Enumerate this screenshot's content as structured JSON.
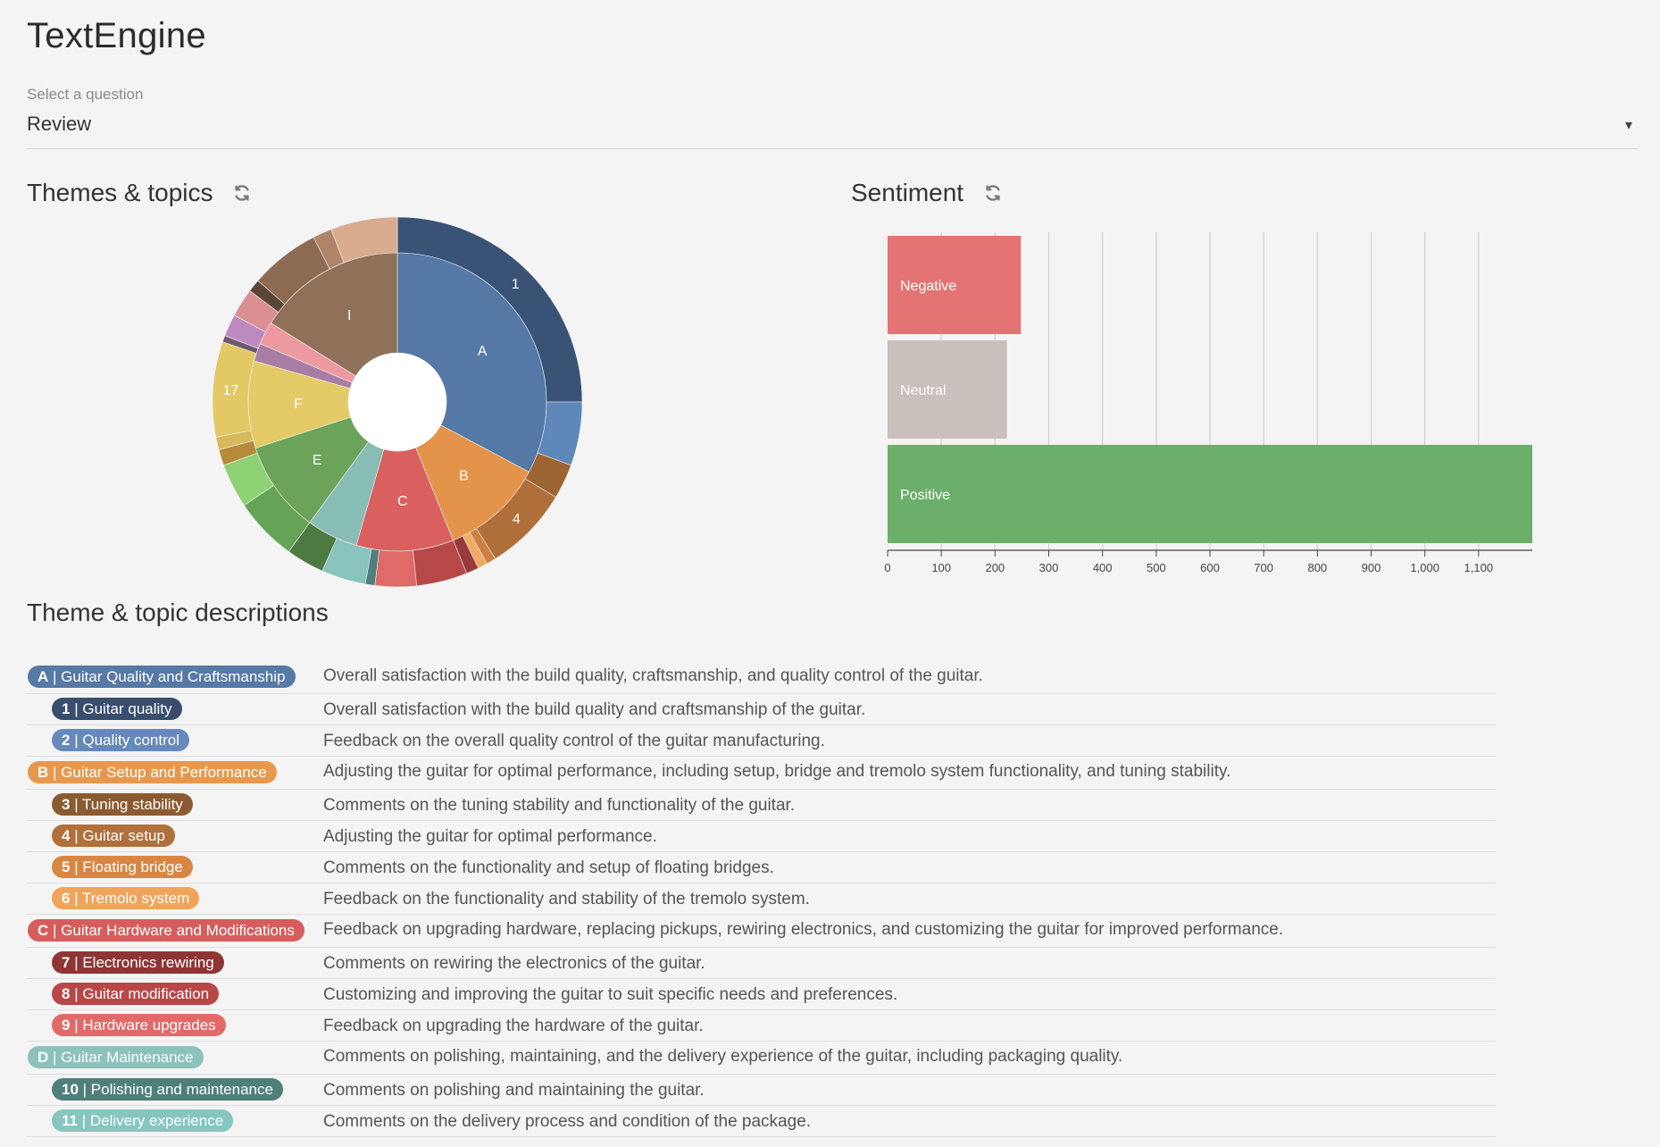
{
  "app": {
    "title": "TextEngine"
  },
  "question": {
    "label": "Select a question",
    "value": "Review",
    "caret": "▾"
  },
  "themes_topics": {
    "title": "Themes & topics",
    "refresh_icon": "refresh-icon"
  },
  "sentiment": {
    "title": "Sentiment",
    "refresh_icon": "refresh-icon"
  },
  "descriptions": {
    "title": "Theme & topic descriptions"
  },
  "chart_data": [
    {
      "type": "sunburst",
      "inner_labels": [
        "A",
        "B",
        "C",
        "E",
        "F",
        "I"
      ],
      "outer_labels": [
        "1",
        "4",
        "17"
      ],
      "inner": [
        {
          "label": "A",
          "color": "#5479a6",
          "start": 0,
          "end": 118
        },
        {
          "label": "B",
          "color": "#e4934a",
          "start": 118,
          "end": 158
        },
        {
          "label": "C",
          "color": "#d9605e",
          "start": 158,
          "end": 196
        },
        {
          "label": "",
          "color": "#88bdb6",
          "start": 196,
          "end": 216
        },
        {
          "label": "E",
          "color": "#6ba35b",
          "start": 216,
          "end": 252
        },
        {
          "label": "F",
          "color": "#e5ca68",
          "start": 252,
          "end": 286
        },
        {
          "label": "",
          "color": "#a87da5",
          "start": 286,
          "end": 293
        },
        {
          "label": "",
          "color": "#ec99a0",
          "start": 293,
          "end": 302
        },
        {
          "label": "I",
          "color": "#8f7058",
          "start": 302,
          "end": 360
        }
      ],
      "outer": [
        {
          "label": "1",
          "color": "#3a5275",
          "start": 0,
          "end": 90
        },
        {
          "label": "",
          "color": "#5e87ba",
          "start": 90,
          "end": 110
        },
        {
          "label": "",
          "color": "#9c6432",
          "start": 110,
          "end": 121
        },
        {
          "label": "4",
          "color": "#b06e39",
          "start": 121,
          "end": 148
        },
        {
          "label": "",
          "color": "#cd7f3f",
          "start": 148,
          "end": 151
        },
        {
          "label": "",
          "color": "#f0aa62",
          "start": 151,
          "end": 154
        },
        {
          "label": "",
          "color": "#993a3a",
          "start": 154,
          "end": 158
        },
        {
          "label": "",
          "color": "#b84747",
          "start": 158,
          "end": 174
        },
        {
          "label": "",
          "color": "#e06a68",
          "start": 174,
          "end": 187
        },
        {
          "label": "",
          "color": "#4e7f7b",
          "start": 187,
          "end": 190
        },
        {
          "label": "",
          "color": "#88c3bd",
          "start": 190,
          "end": 204
        },
        {
          "label": "",
          "color": "#4d7a40",
          "start": 204,
          "end": 216
        },
        {
          "label": "",
          "color": "#65a456",
          "start": 216,
          "end": 236
        },
        {
          "label": "",
          "color": "#8fd276",
          "start": 236,
          "end": 250
        },
        {
          "label": "",
          "color": "#b58a3a",
          "start": 250,
          "end": 255
        },
        {
          "label": "",
          "color": "#d7ba5c",
          "start": 255,
          "end": 259
        },
        {
          "label": "17",
          "color": "#e2c966",
          "start": 259,
          "end": 289
        },
        {
          "label": "",
          "color": "#6e5970",
          "start": 289,
          "end": 291
        },
        {
          "label": "",
          "color": "#bd8ac0",
          "start": 291,
          "end": 298
        },
        {
          "label": "",
          "color": "#dc8f92",
          "start": 298,
          "end": 307
        },
        {
          "label": "",
          "color": "#5b4636",
          "start": 307,
          "end": 311
        },
        {
          "label": "",
          "color": "#8d6b52",
          "start": 311,
          "end": 333
        },
        {
          "label": "",
          "color": "#b08468",
          "start": 333,
          "end": 339
        },
        {
          "label": "",
          "color": "#d9ab8f",
          "start": 339,
          "end": 360
        }
      ]
    },
    {
      "type": "bar",
      "orientation": "horizontal",
      "categories": [
        "Negative",
        "Neutral",
        "Positive"
      ],
      "values": [
        248,
        222,
        1200
      ],
      "colors": [
        "#e37473",
        "#c9bfbb",
        "#6baf6a"
      ],
      "xlim": [
        0,
        1200
      ],
      "xticks": [
        "0",
        "100",
        "200",
        "300",
        "400",
        "500",
        "600",
        "700",
        "800",
        "900",
        "1,000",
        "1,100"
      ],
      "grid": true
    }
  ],
  "rows": [
    {
      "type": "theme",
      "code": "A",
      "name": "Guitar Quality and Craftsmanship",
      "color": "#5779a6",
      "desc": "Overall satisfaction with the build quality, craftsmanship, and quality control of the guitar."
    },
    {
      "type": "topic",
      "code": "1",
      "name": "Guitar quality",
      "color": "#394e6e",
      "desc": "Overall satisfaction with the build quality and craftsmanship of the guitar."
    },
    {
      "type": "topic",
      "code": "2",
      "name": "Quality control",
      "color": "#6689bd",
      "desc": "Feedback on the overall quality control of the guitar manufacturing."
    },
    {
      "type": "theme",
      "code": "B",
      "name": "Guitar Setup and Performance",
      "color": "#e8984d",
      "desc": "Adjusting the guitar for optimal performance, including setup, bridge and tremolo system functionality, and tuning stability."
    },
    {
      "type": "topic",
      "code": "3",
      "name": "Tuning stability",
      "color": "#8c5a30",
      "desc": "Comments on the tuning stability and functionality of the guitar."
    },
    {
      "type": "topic",
      "code": "4",
      "name": "Guitar setup",
      "color": "#b06f3b",
      "desc": "Adjusting the guitar for optimal performance."
    },
    {
      "type": "topic",
      "code": "5",
      "name": "Floating bridge",
      "color": "#d98643",
      "desc": "Comments on the functionality and setup of floating bridges."
    },
    {
      "type": "topic",
      "code": "6",
      "name": "Tremolo system",
      "color": "#f0a45b",
      "desc": "Feedback on the functionality and stability of the tremolo system."
    },
    {
      "type": "theme",
      "code": "C",
      "name": "Guitar Hardware and Modifications",
      "color": "#d65d5c",
      "desc": "Feedback on upgrading hardware, replacing pickups, rewiring electronics, and customizing the guitar for improved performance."
    },
    {
      "type": "topic",
      "code": "7",
      "name": "Electronics rewiring",
      "color": "#8f3535",
      "desc": "Comments on rewiring the electronics of the guitar."
    },
    {
      "type": "topic",
      "code": "8",
      "name": "Guitar modification",
      "color": "#b94747",
      "desc": "Customizing and improving the guitar to suit specific needs and preferences."
    },
    {
      "type": "topic",
      "code": "9",
      "name": "Hardware upgrades",
      "color": "#e26968",
      "desc": "Feedback on upgrading the hardware of the guitar."
    },
    {
      "type": "theme",
      "code": "D",
      "name": "Guitar Maintenance",
      "color": "#8cc2bb",
      "desc": "Comments on polishing, maintaining, and the delivery experience of the guitar, including packaging quality."
    },
    {
      "type": "topic",
      "code": "10",
      "name": "Polishing and maintenance",
      "color": "#4f7f79",
      "desc": "Comments on polishing and maintaining the guitar."
    },
    {
      "type": "topic",
      "code": "11",
      "name": "Delivery experience",
      "color": "#86c6bf",
      "desc": "Comments on the delivery process and condition of the package."
    }
  ]
}
